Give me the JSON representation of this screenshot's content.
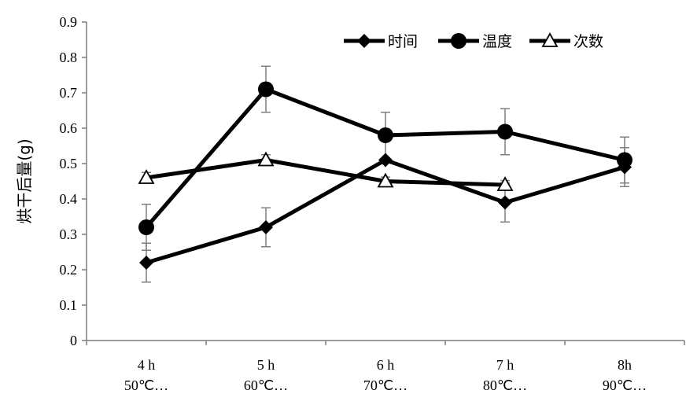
{
  "chart_data": {
    "type": "line",
    "ylabel": "烘干后量(g)",
    "ylim": [
      0,
      0.9
    ],
    "yticks": [
      "0",
      "0.1",
      "0.2",
      "0.3",
      "0.4",
      "0.5",
      "0.6",
      "0.7",
      "0.8",
      "0.9"
    ],
    "categories": [
      [
        "4 h",
        "50℃…"
      ],
      [
        "5 h",
        "60℃…"
      ],
      [
        "6 h",
        "70℃…"
      ],
      [
        "7 h",
        "80℃…"
      ],
      [
        "8h",
        "90℃…"
      ]
    ],
    "legend_position": "top-right",
    "grid": false,
    "series": [
      {
        "name": "时间",
        "marker": "diamond",
        "values": [
          0.22,
          0.32,
          0.51,
          0.39,
          0.49
        ],
        "error": [
          0.055,
          0.055,
          null,
          0.055,
          0.055
        ]
      },
      {
        "name": "温度",
        "marker": "circle",
        "values": [
          0.32,
          0.71,
          0.58,
          0.59,
          0.51
        ],
        "error": [
          0.065,
          0.065,
          0.065,
          0.065,
          0.065
        ]
      },
      {
        "name": "次数",
        "marker": "triangle",
        "values": [
          0.46,
          0.51,
          0.45,
          0.44,
          null
        ],
        "error": [
          0.015,
          0.015,
          0.012,
          0.012,
          null
        ]
      }
    ]
  }
}
